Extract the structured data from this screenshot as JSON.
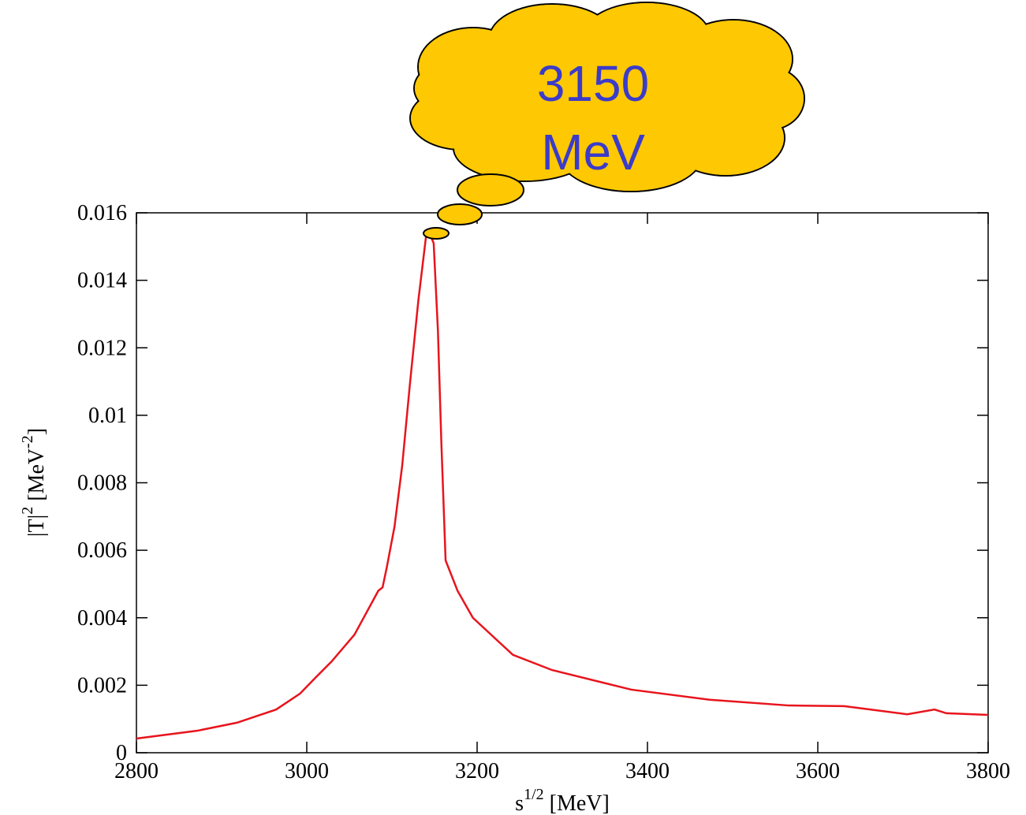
{
  "chart_data": {
    "type": "line",
    "x_label": [
      "s",
      "1/2",
      " [MeV]"
    ],
    "y_label": [
      "|T|",
      "2",
      " [MeV",
      "-2",
      "]"
    ],
    "annotation": [
      "3150",
      "MeV"
    ],
    "x": [
      2800,
      2871,
      2918,
      2964,
      2992,
      3010,
      3029,
      3056,
      3084,
      3089,
      3094,
      3103,
      3112,
      3121,
      3131,
      3140,
      3144,
      3149,
      3154,
      3158,
      3163,
      3177,
      3195,
      3242,
      3288,
      3381,
      3473,
      3566,
      3631,
      3705,
      3737,
      3751,
      3800
    ],
    "series": [
      {
        "color": "#e8141c",
        "values": [
          0.00042,
          0.00065,
          0.00089,
          0.00128,
          0.00175,
          0.00222,
          0.0027,
          0.0035,
          0.0048,
          0.0049,
          0.0055,
          0.0067,
          0.0085,
          0.0109,
          0.0134,
          0.0153,
          0.0154,
          0.0151,
          0.0125,
          0.0092,
          0.0057,
          0.0048,
          0.004,
          0.0029,
          0.00245,
          0.00187,
          0.00157,
          0.0014,
          0.00138,
          0.00114,
          0.00128,
          0.00117,
          0.00112
        ]
      }
    ],
    "xlim": [
      2800,
      3800
    ],
    "xticks": [
      2800,
      3000,
      3200,
      3400,
      3600,
      3800
    ],
    "ylim": [
      0,
      0.016
    ],
    "yticks": [
      0,
      0.002,
      0.004,
      0.006,
      0.008,
      0.01,
      0.012,
      0.014,
      0.016
    ]
  }
}
